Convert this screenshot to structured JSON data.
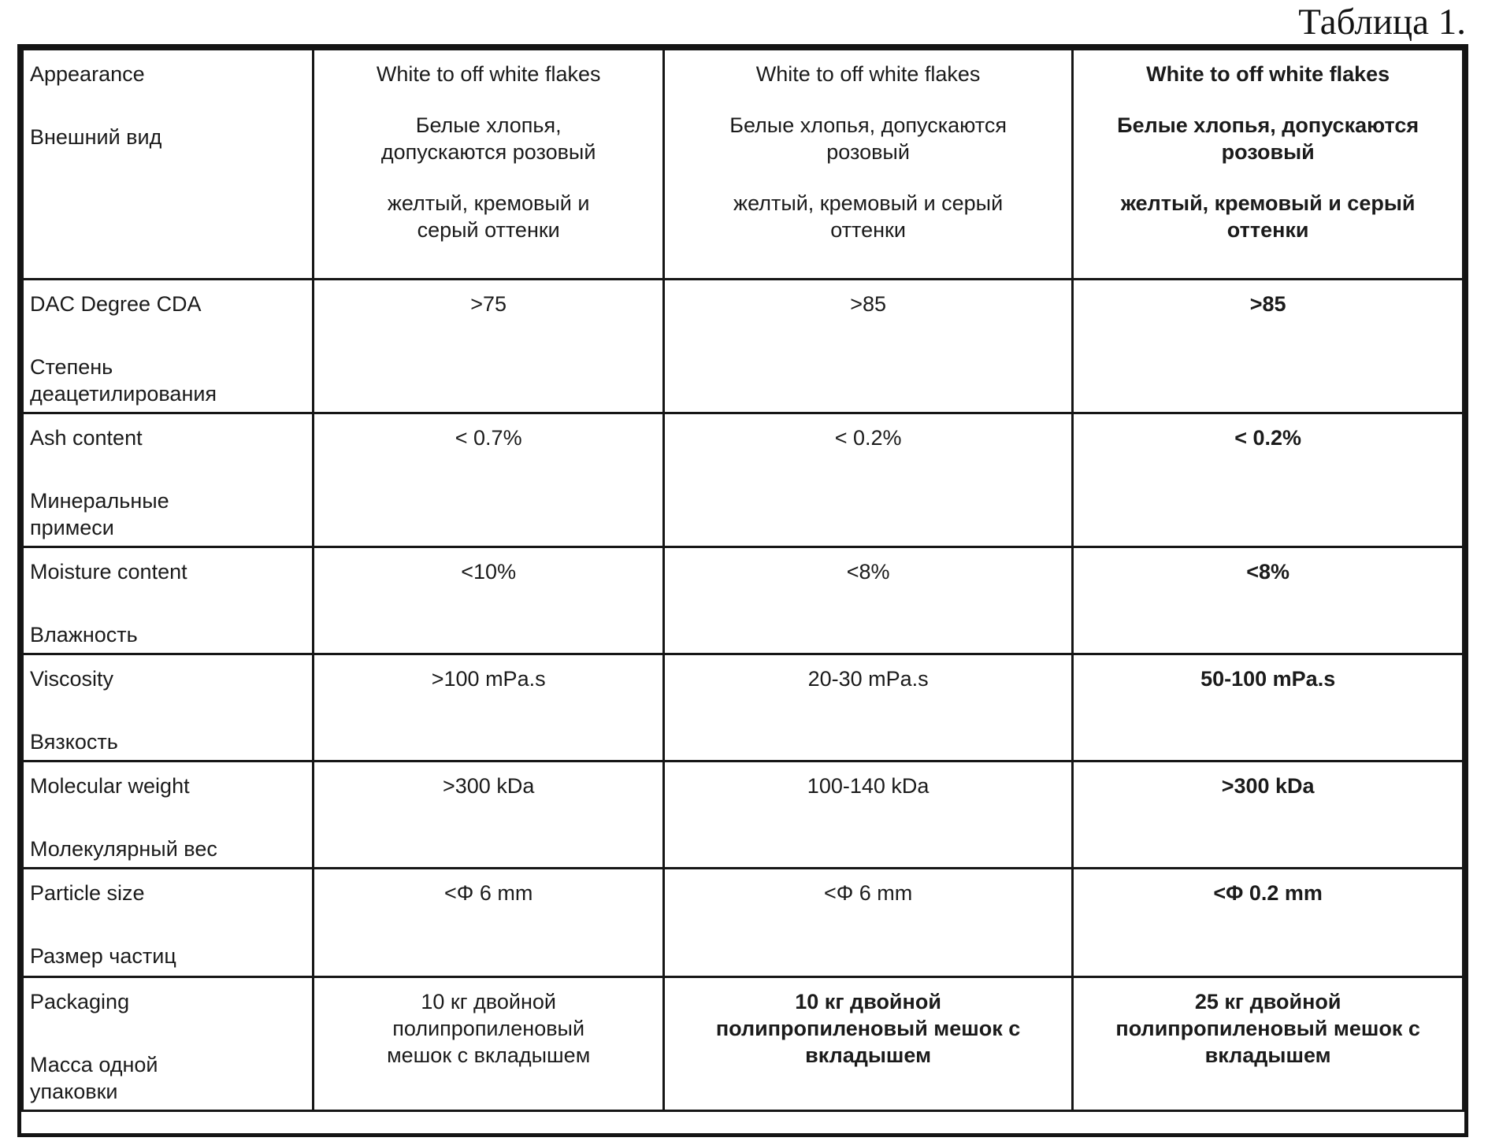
{
  "page": {
    "title": "Таблица 1."
  },
  "table": {
    "rows": [
      {
        "cells": [
          [
            [
              "Appearance"
            ],
            [
              "Внешний вид"
            ]
          ],
          [
            [
              "White to off white flakes"
            ],
            [
              "Белые хлопья,",
              "допускаются розовый"
            ],
            [
              "желтый, кремовый и",
              "серый оттенки"
            ]
          ],
          [
            [
              "White to off white flakes"
            ],
            [
              "Белые хлопья, допускаются",
              "розовый"
            ],
            [
              "желтый, кремовый и серый",
              "оттенки"
            ]
          ],
          [
            [
              "White to off white flakes"
            ],
            [
              "Белые хлопья, допускаются",
              "розовый"
            ],
            [
              "желтый, кремовый и серый",
              "оттенки"
            ]
          ]
        ]
      },
      {
        "cells": [
          [
            [
              "DAC Degree CDA"
            ],
            [
              "Степень",
              "деацетилирования"
            ]
          ],
          [
            [
              ">75"
            ]
          ],
          [
            [
              ">85"
            ]
          ],
          [
            [
              ">85"
            ]
          ]
        ]
      },
      {
        "cells": [
          [
            [
              "Ash content"
            ],
            [
              "Минеральные",
              "примеси"
            ]
          ],
          [
            [
              "< 0.7%"
            ]
          ],
          [
            [
              "< 0.2%"
            ]
          ],
          [
            [
              "< 0.2%"
            ]
          ]
        ]
      },
      {
        "cells": [
          [
            [
              "Moisture content"
            ],
            [
              "Влажность"
            ]
          ],
          [
            [
              "<10%"
            ]
          ],
          [
            [
              "<8%"
            ]
          ],
          [
            [
              "<8%"
            ]
          ]
        ]
      },
      {
        "cells": [
          [
            [
              "Viscosity"
            ],
            [
              "Вязкость"
            ]
          ],
          [
            [
              ">100 mPa.s"
            ]
          ],
          [
            [
              "20-30 mPa.s"
            ]
          ],
          [
            [
              "50-100 mPa.s"
            ]
          ]
        ]
      },
      {
        "cells": [
          [
            [
              "Molecular weight"
            ],
            [
              "Молекулярный вес"
            ]
          ],
          [
            [
              ">300 kDa"
            ]
          ],
          [
            [
              "100-140 kDa"
            ]
          ],
          [
            [
              ">300 kDa"
            ]
          ]
        ]
      },
      {
        "cells": [
          [
            [
              "Particle size"
            ],
            [
              "Размер частиц"
            ]
          ],
          [
            [
              "<Φ 6 mm"
            ]
          ],
          [
            [
              "<Φ 6 mm"
            ]
          ],
          [
            [
              "<Φ 0.2 mm"
            ]
          ]
        ]
      },
      {
        "cells": [
          [
            [
              "Packaging"
            ],
            [
              "Масса одной",
              "упаковки"
            ]
          ],
          [
            [
              "10 кг двойной",
              "полипропиленовый",
              "мешок с вкладышем"
            ]
          ],
          [
            [
              "10 кг двойной",
              "полипропиленовый мешок с",
              "вкладышем"
            ]
          ],
          [
            [
              "25 кг двойной",
              "полипропиленовый мешок с",
              "вкладышем"
            ]
          ]
        ]
      }
    ]
  }
}
